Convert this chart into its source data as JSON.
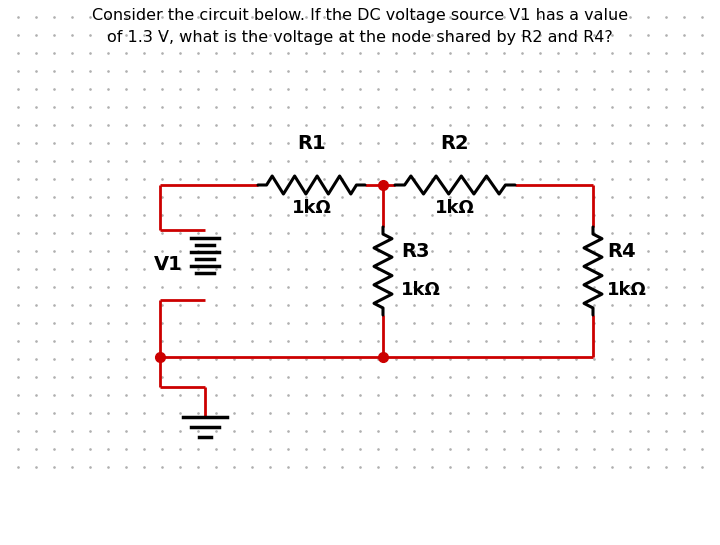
{
  "title_line1": "Consider the circuit below. If the DC voltage source V1 has a value",
  "title_line2": "of 1.3 V, what is the voltage at the node shared by R2 and R4?",
  "title_fontsize": 11.5,
  "background_color": "#ffffff",
  "dot_color": "#b0b0b0",
  "wire_color": "#cc0000",
  "component_color": "#000000",
  "dot_node_color": "#cc0000",
  "resistor_label_R1": "R1",
  "resistor_label_R2": "R2",
  "resistor_label_R3": "R3",
  "resistor_label_R4": "R4",
  "resistor_value": "1kΩ",
  "v1_label": "V1",
  "figsize": [
    7.2,
    5.45
  ],
  "dpi": 100
}
